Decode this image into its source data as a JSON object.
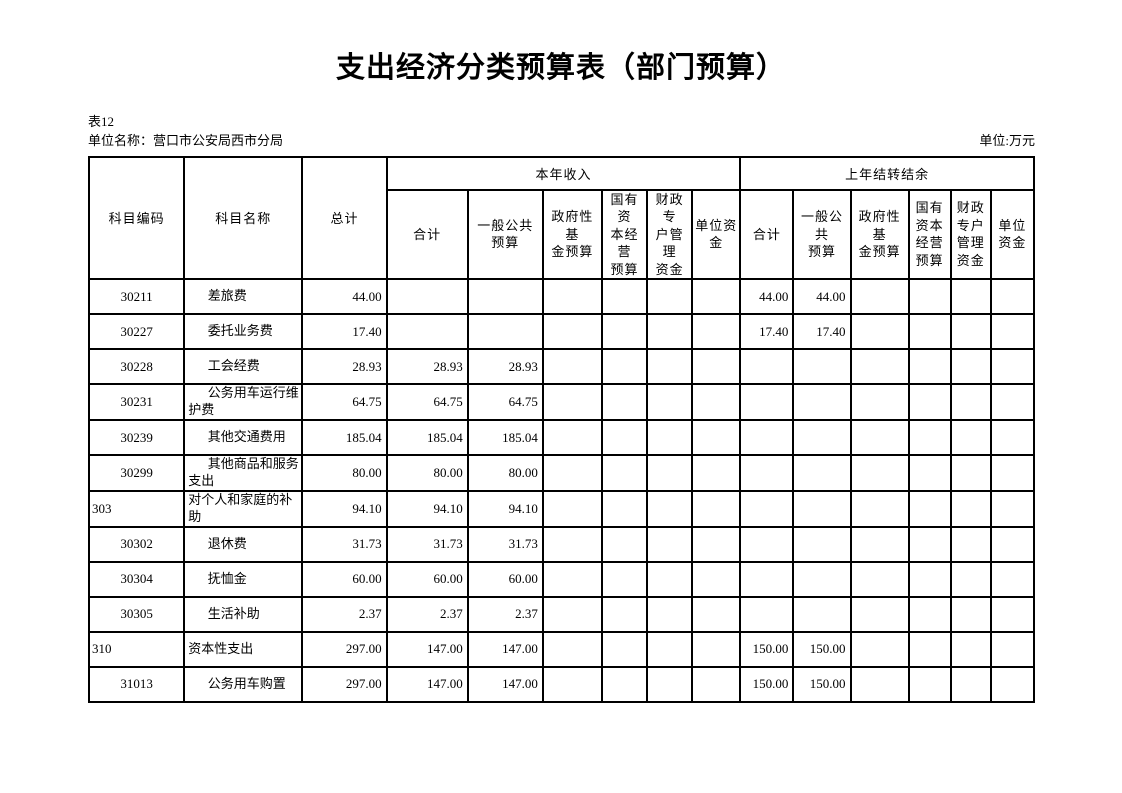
{
  "page": {
    "title": "支出经济分类预算表（部门预算）",
    "table_tag": "表12",
    "unit_name": "单位名称：营口市公安局西市分局",
    "unit_measure": "单位:万元"
  },
  "table": {
    "corner": [
      "科目编码",
      "科目名称",
      "总计"
    ],
    "groups": [
      {
        "label": "本年收入",
        "columns": [
          "合计",
          "一般公共\n预算",
          "政府性基\n金预算",
          "国有资\n本经营\n预算",
          "财政专\n户管理\n资金",
          "单位资\n金"
        ]
      },
      {
        "label": "上年结转结余",
        "columns": [
          "合计",
          "一般公\n共\n预算",
          "政府性基\n金预算",
          "国有\n资本\n经营\n预算",
          "财政\n专户\n管理\n资金",
          "单位\n资金"
        ]
      }
    ],
    "rows": [
      {
        "code": "30211",
        "name": "差旅费",
        "indent": true,
        "values": [
          "44.00",
          "",
          "",
          "",
          "",
          "",
          "",
          "44.00",
          "44.00",
          "",
          "",
          "",
          ""
        ]
      },
      {
        "code": "30227",
        "name": "委托业务费",
        "indent": true,
        "values": [
          "17.40",
          "",
          "",
          "",
          "",
          "",
          "",
          "17.40",
          "17.40",
          "",
          "",
          "",
          ""
        ]
      },
      {
        "code": "30228",
        "name": "工会经费",
        "indent": true,
        "values": [
          "28.93",
          "28.93",
          "28.93",
          "",
          "",
          "",
          "",
          "",
          "",
          "",
          "",
          "",
          ""
        ]
      },
      {
        "code": "30231",
        "name": "公务用车运行维\n护费",
        "indent": true,
        "values": [
          "64.75",
          "64.75",
          "64.75",
          "",
          "",
          "",
          "",
          "",
          "",
          "",
          "",
          "",
          ""
        ]
      },
      {
        "code": "30239",
        "name": "其他交通费用",
        "indent": true,
        "values": [
          "185.04",
          "185.04",
          "185.04",
          "",
          "",
          "",
          "",
          "",
          "",
          "",
          "",
          "",
          ""
        ]
      },
      {
        "code": "30299",
        "name": "其他商品和服务\n支出",
        "indent": true,
        "values": [
          "80.00",
          "80.00",
          "80.00",
          "",
          "",
          "",
          "",
          "",
          "",
          "",
          "",
          "",
          ""
        ]
      },
      {
        "code": "303",
        "name": "对个人和家庭的补\n助",
        "indent": false,
        "values": [
          "94.10",
          "94.10",
          "94.10",
          "",
          "",
          "",
          "",
          "",
          "",
          "",
          "",
          "",
          ""
        ]
      },
      {
        "code": "30302",
        "name": "退休费",
        "indent": true,
        "values": [
          "31.73",
          "31.73",
          "31.73",
          "",
          "",
          "",
          "",
          "",
          "",
          "",
          "",
          "",
          ""
        ]
      },
      {
        "code": "30304",
        "name": "抚恤金",
        "indent": true,
        "values": [
          "60.00",
          "60.00",
          "60.00",
          "",
          "",
          "",
          "",
          "",
          "",
          "",
          "",
          "",
          ""
        ]
      },
      {
        "code": "30305",
        "name": "生活补助",
        "indent": true,
        "values": [
          "2.37",
          "2.37",
          "2.37",
          "",
          "",
          "",
          "",
          "",
          "",
          "",
          "",
          "",
          ""
        ]
      },
      {
        "code": "310",
        "name": "资本性支出",
        "indent": false,
        "values": [
          "297.00",
          "147.00",
          "147.00",
          "",
          "",
          "",
          "",
          "150.00",
          "150.00",
          "",
          "",
          "",
          ""
        ]
      },
      {
        "code": "31013",
        "name": "公务用车购置",
        "indent": true,
        "values": [
          "297.00",
          "147.00",
          "147.00",
          "",
          "",
          "",
          "",
          "150.00",
          "150.00",
          "",
          "",
          "",
          ""
        ]
      }
    ]
  }
}
